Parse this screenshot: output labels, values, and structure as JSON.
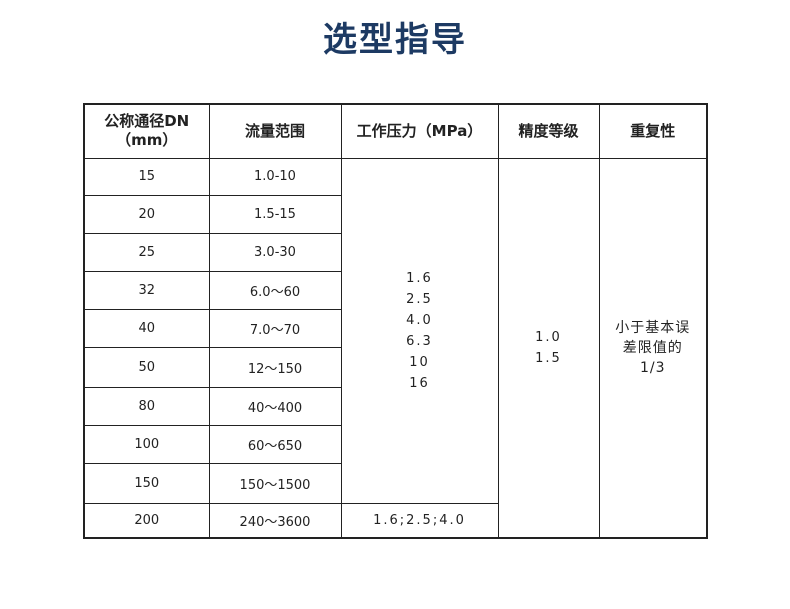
{
  "title": "选型指导",
  "headers": [
    "公称通径DN（mm）",
    "流量范围",
    "工作压力（MPa）",
    "精度等级",
    "重复性"
  ],
  "header_dn_line1": "公称通径DN",
  "header_dn_line2": "（mm）",
  "rows": [
    {
      "dn": "15",
      "flow": "1.0-10"
    },
    {
      "dn": "20",
      "flow": "1.5-15"
    },
    {
      "dn": "25",
      "flow": "3.0-30"
    },
    {
      "dn": "32",
      "flow": "6.0～60"
    },
    {
      "dn": "40",
      "flow": "7.0～70"
    },
    {
      "dn": "50",
      "flow": "12～150"
    },
    {
      "dn": "80",
      "flow": "40～400"
    },
    {
      "dn": "100",
      "flow": "60～650"
    },
    {
      "dn": "150",
      "flow": "150～1500"
    },
    {
      "dn": "200",
      "flow": "240～3600"
    }
  ],
  "pressure_main": [
    "1.6",
    "2.5",
    "4.0",
    "6.3",
    "10",
    "16"
  ],
  "pressure_dn200": "1.6;2.5;4.0",
  "accuracy": [
    "1.0",
    "1.5"
  ],
  "repeatability": [
    "小于基本误",
    "差限值的",
    "1/3"
  ]
}
